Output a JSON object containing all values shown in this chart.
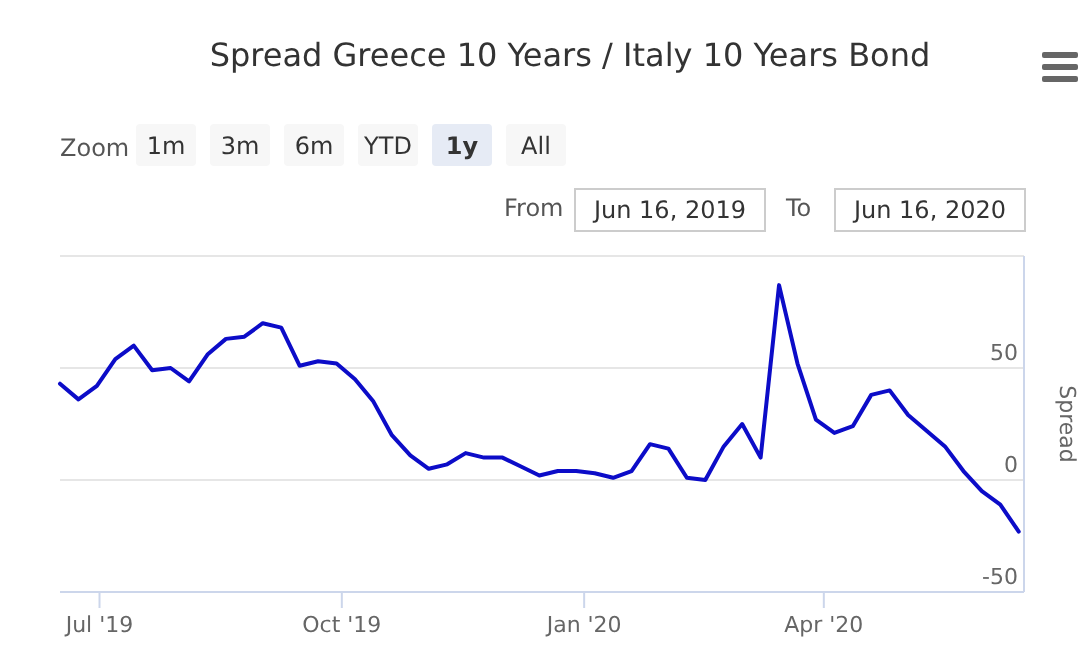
{
  "chart_data": {
    "type": "line",
    "title": "Spread Greece 10 Years / Italy 10 Years Bond",
    "ylabel": "Spread",
    "annotations": [
      "Zoom",
      "1m",
      "3m",
      "6m",
      "YTD",
      "1y",
      "All",
      "From",
      "Jun 16, 2019",
      "To",
      "Jun 16, 2020"
    ],
    "x": [
      "2019-06-16",
      "2019-06-23",
      "2019-06-30",
      "2019-07-07",
      "2019-07-14",
      "2019-07-21",
      "2019-07-28",
      "2019-08-04",
      "2019-08-11",
      "2019-08-18",
      "2019-08-25",
      "2019-09-01",
      "2019-09-08",
      "2019-09-15",
      "2019-09-22",
      "2019-09-29",
      "2019-10-06",
      "2019-10-13",
      "2019-10-20",
      "2019-10-27",
      "2019-11-03",
      "2019-11-10",
      "2019-11-17",
      "2019-11-24",
      "2019-12-01",
      "2019-12-08",
      "2019-12-15",
      "2019-12-22",
      "2019-12-29",
      "2020-01-05",
      "2020-01-12",
      "2020-01-19",
      "2020-01-26",
      "2020-02-02",
      "2020-02-09",
      "2020-02-16",
      "2020-02-23",
      "2020-03-01",
      "2020-03-08",
      "2020-03-15",
      "2020-03-22",
      "2020-03-29",
      "2020-04-05",
      "2020-04-12",
      "2020-04-19",
      "2020-04-26",
      "2020-05-03",
      "2020-05-10",
      "2020-05-17",
      "2020-05-24",
      "2020-05-31",
      "2020-06-07",
      "2020-06-14"
    ],
    "series": [
      {
        "color": "#0c0cc8",
        "values": [
          43,
          36,
          42,
          54,
          60,
          49,
          50,
          44,
          56,
          63,
          64,
          70,
          68,
          51,
          53,
          52,
          45,
          35,
          20,
          11,
          5,
          7,
          12,
          10,
          10,
          6,
          2,
          4,
          4,
          3,
          1,
          4,
          16,
          14,
          1,
          0,
          15,
          25,
          10,
          87,
          52,
          27,
          21,
          24,
          38,
          40,
          29,
          22,
          15,
          4,
          -5,
          -11,
          -23
        ]
      }
    ],
    "xlim": [
      "2019-06-16",
      "2020-06-16"
    ],
    "xticks": [
      {
        "value": "2019-07-01",
        "label": "Jul '19"
      },
      {
        "value": "2019-10-01",
        "label": "Oct '19"
      },
      {
        "value": "2020-01-01",
        "label": "Jan '20"
      },
      {
        "value": "2020-04-01",
        "label": "Apr '20"
      }
    ],
    "ylim": [
      -50,
      100
    ],
    "yticks": [
      -50,
      0,
      50,
      {
        "value": 100,
        "label": null
      }
    ],
    "grid": "y",
    "marker": "none",
    "line_style": "solid"
  }
}
